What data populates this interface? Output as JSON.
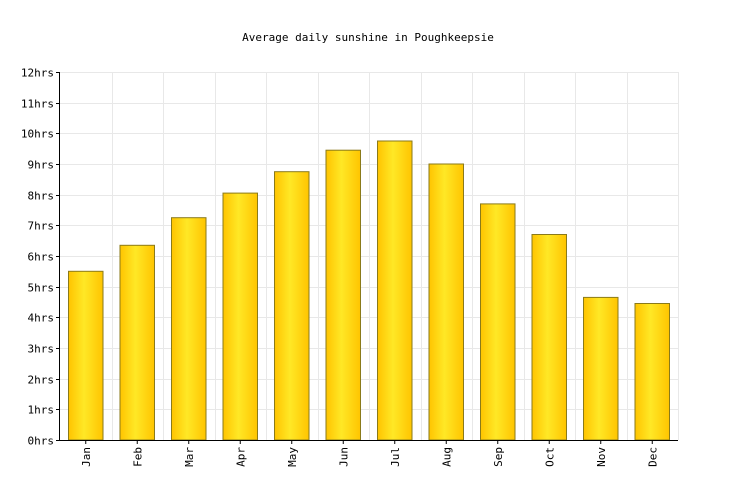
{
  "chart_data": {
    "type": "bar",
    "title": "Average daily sunshine in Poughkeepsie",
    "xlabel": "",
    "ylabel": "",
    "categories": [
      "Jan",
      "Feb",
      "Mar",
      "Apr",
      "May",
      "Jun",
      "Jul",
      "Aug",
      "Sep",
      "Oct",
      "Nov",
      "Dec"
    ],
    "values": [
      5.5,
      6.35,
      7.25,
      8.05,
      8.75,
      9.45,
      9.75,
      9.0,
      7.7,
      6.7,
      4.65,
      4.45
    ],
    "ylim": [
      0,
      12
    ],
    "yticks": [
      "0hrs",
      "1hrs",
      "2hrs",
      "3hrs",
      "4hrs",
      "5hrs",
      "6hrs",
      "7hrs",
      "8hrs",
      "9hrs",
      "10hrs",
      "11hrs",
      "12hrs"
    ],
    "grid": true,
    "bar_color": "#FFE826",
    "bar_color_dark": "#FFC400",
    "bar_border": "#8a7a1a"
  }
}
